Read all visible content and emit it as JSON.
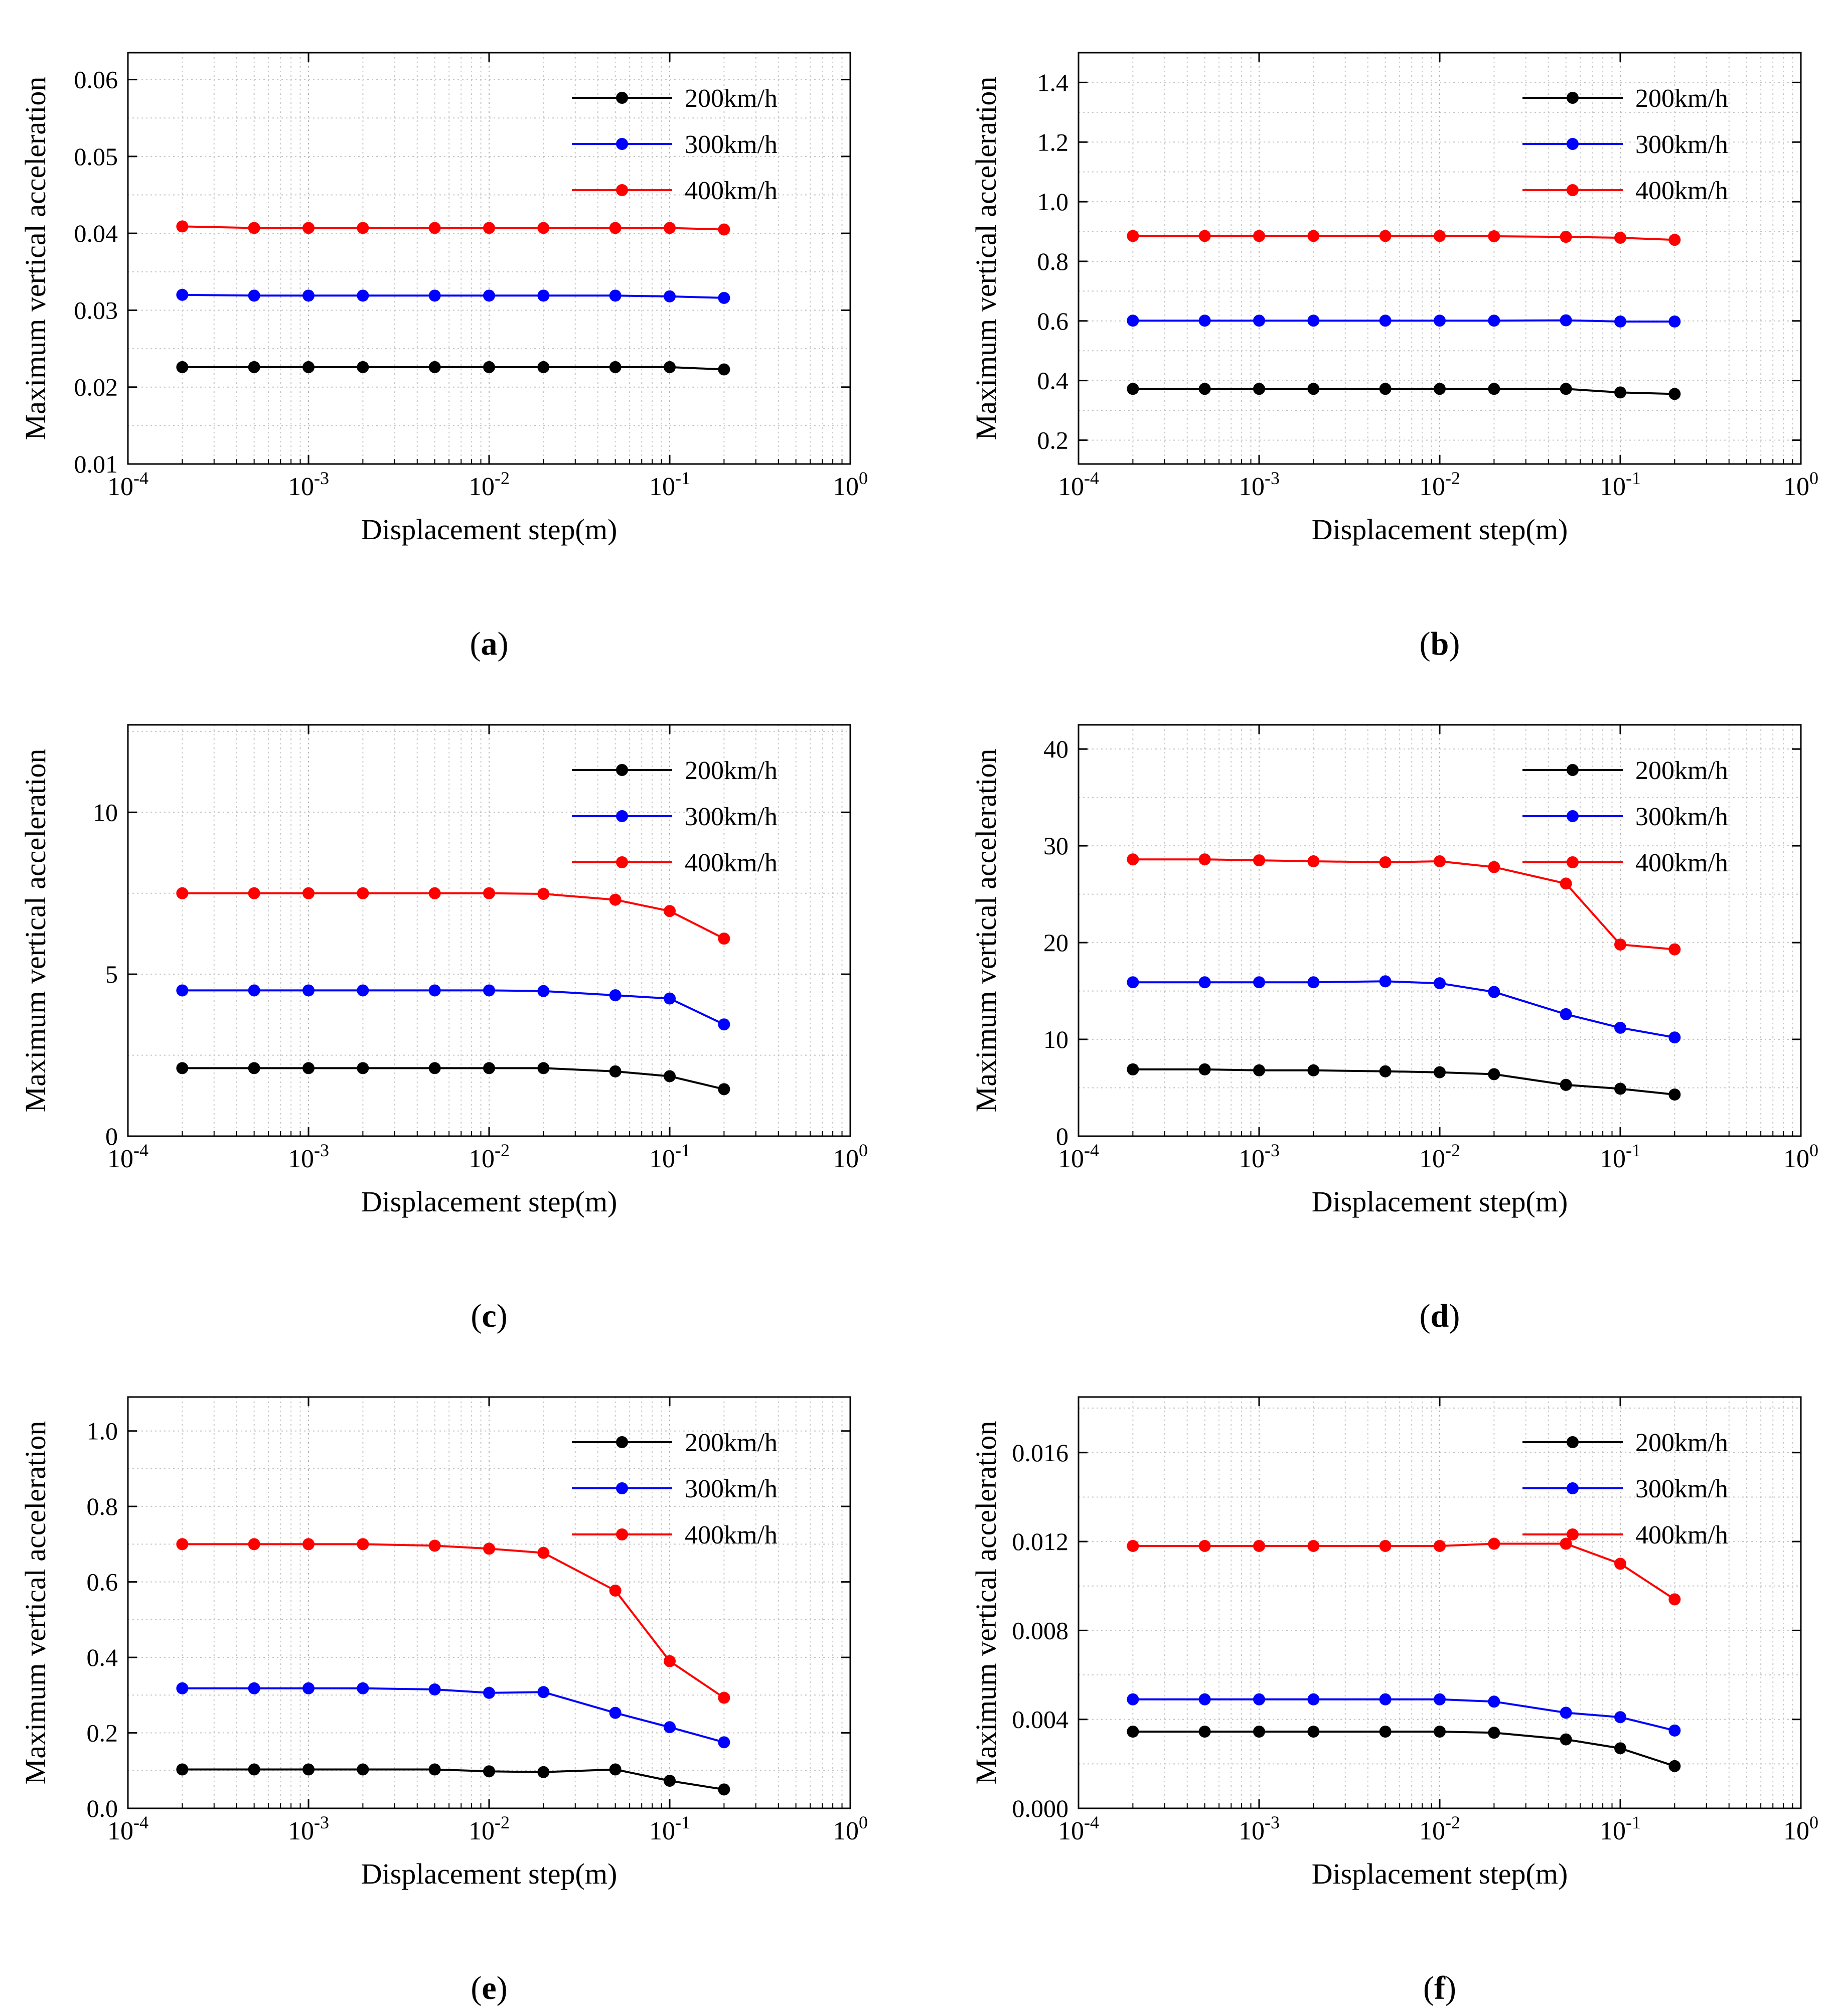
{
  "figure": {
    "x_values": [
      0.0002,
      0.0005,
      0.001,
      0.002,
      0.005,
      0.01,
      0.02,
      0.05,
      0.1,
      0.2
    ],
    "series_colors": [
      "#000000",
      "#0000ff",
      "#ff0000"
    ]
  },
  "chart_data": [
    {
      "type": "line",
      "panel_label": "a",
      "xlabel": "Displacement step(m)",
      "ylabel": "Maximum vertical acceleration",
      "xscale": "log",
      "xlim": [
        0.0001,
        1
      ],
      "x_ticks": [
        0.0001,
        0.001,
        0.01,
        0.1,
        1
      ],
      "x_tick_labels": [
        {
          "base": "10",
          "exp": "-4"
        },
        {
          "base": "10",
          "exp": "-3"
        },
        {
          "base": "10",
          "exp": "-2"
        },
        {
          "base": "10",
          "exp": "-1"
        },
        {
          "base": "10",
          "exp": "0"
        }
      ],
      "ylim": [
        0.01,
        0.0635
      ],
      "y_ticks": [
        0.01,
        0.02,
        0.03,
        0.04,
        0.05,
        0.06
      ],
      "y_tick_labels": [
        "0.01",
        "0.02",
        "0.03",
        "0.04",
        "0.05",
        "0.06"
      ],
      "grid": true,
      "legend": "top-right",
      "x": [
        0.0002,
        0.0005,
        0.001,
        0.002,
        0.005,
        0.01,
        0.02,
        0.05,
        0.1,
        0.2
      ],
      "series": [
        {
          "name": "200km/h",
          "color": "#000000",
          "values": [
            0.0226,
            0.0226,
            0.0226,
            0.0226,
            0.0226,
            0.0226,
            0.0226,
            0.0226,
            0.0226,
            0.0223
          ]
        },
        {
          "name": "300km/h",
          "color": "#0000ff",
          "values": [
            0.032,
            0.0319,
            0.0319,
            0.0319,
            0.0319,
            0.0319,
            0.0319,
            0.0319,
            0.0318,
            0.0316
          ]
        },
        {
          "name": "400km/h",
          "color": "#ff0000",
          "values": [
            0.0409,
            0.0407,
            0.0407,
            0.0407,
            0.0407,
            0.0407,
            0.0407,
            0.0407,
            0.0407,
            0.0405
          ]
        }
      ]
    },
    {
      "type": "line",
      "panel_label": "b",
      "xlabel": "Displacement step(m)",
      "ylabel": "Maximum vertical acceleration",
      "xscale": "log",
      "xlim": [
        0.0001,
        1
      ],
      "x_ticks": [
        0.0001,
        0.001,
        0.01,
        0.1,
        1
      ],
      "x_tick_labels": [
        {
          "base": "10",
          "exp": "-4"
        },
        {
          "base": "10",
          "exp": "-3"
        },
        {
          "base": "10",
          "exp": "-2"
        },
        {
          "base": "10",
          "exp": "-1"
        },
        {
          "base": "10",
          "exp": "0"
        }
      ],
      "ylim": [
        0.12,
        1.5
      ],
      "y_ticks": [
        0.2,
        0.4,
        0.6,
        0.8,
        1.0,
        1.2,
        1.4
      ],
      "y_tick_labels": [
        "0.2",
        "0.4",
        "0.6",
        "0.8",
        "1.0",
        "1.2",
        "1.4"
      ],
      "grid": true,
      "legend": "top-right",
      "x": [
        0.0002,
        0.0005,
        0.001,
        0.002,
        0.005,
        0.01,
        0.02,
        0.05,
        0.1,
        0.2
      ],
      "series": [
        {
          "name": "200km/h",
          "color": "#000000",
          "values": [
            0.372,
            0.372,
            0.372,
            0.372,
            0.372,
            0.372,
            0.372,
            0.372,
            0.36,
            0.355
          ]
        },
        {
          "name": "300km/h",
          "color": "#0000ff",
          "values": [
            0.601,
            0.601,
            0.601,
            0.601,
            0.601,
            0.601,
            0.601,
            0.602,
            0.598,
            0.598
          ]
        },
        {
          "name": "400km/h",
          "color": "#ff0000",
          "values": [
            0.885,
            0.885,
            0.885,
            0.885,
            0.885,
            0.885,
            0.884,
            0.882,
            0.879,
            0.872
          ]
        }
      ]
    },
    {
      "type": "line",
      "panel_label": "c",
      "xlabel": "Displacement step(m)",
      "ylabel": "Maximum vertical acceleration",
      "xscale": "log",
      "xlim": [
        0.0001,
        1
      ],
      "x_ticks": [
        0.0001,
        0.001,
        0.01,
        0.1,
        1
      ],
      "x_tick_labels": [
        {
          "base": "10",
          "exp": "-4"
        },
        {
          "base": "10",
          "exp": "-3"
        },
        {
          "base": "10",
          "exp": "-2"
        },
        {
          "base": "10",
          "exp": "-1"
        },
        {
          "base": "10",
          "exp": "0"
        }
      ],
      "ylim": [
        0,
        12.7
      ],
      "y_ticks": [
        0,
        5,
        10
      ],
      "y_tick_labels": [
        "0",
        "5",
        "10"
      ],
      "grid": true,
      "legend": "top-right",
      "x": [
        0.0002,
        0.0005,
        0.001,
        0.002,
        0.005,
        0.01,
        0.02,
        0.05,
        0.1,
        0.2
      ],
      "series": [
        {
          "name": "200km/h",
          "color": "#000000",
          "values": [
            2.1,
            2.1,
            2.1,
            2.1,
            2.1,
            2.1,
            2.1,
            2.0,
            1.85,
            1.45
          ]
        },
        {
          "name": "300km/h",
          "color": "#0000ff",
          "values": [
            4.5,
            4.5,
            4.5,
            4.5,
            4.5,
            4.5,
            4.48,
            4.35,
            4.25,
            3.45
          ]
        },
        {
          "name": "400km/h",
          "color": "#ff0000",
          "values": [
            7.5,
            7.5,
            7.5,
            7.5,
            7.5,
            7.5,
            7.48,
            7.3,
            6.95,
            6.1
          ]
        }
      ]
    },
    {
      "type": "line",
      "panel_label": "d",
      "xlabel": "Displacement step(m)",
      "ylabel": "Maximum vertical acceleration",
      "xscale": "log",
      "xlim": [
        0.0001,
        1
      ],
      "x_ticks": [
        0.0001,
        0.001,
        0.01,
        0.1,
        1
      ],
      "x_tick_labels": [
        {
          "base": "10",
          "exp": "-4"
        },
        {
          "base": "10",
          "exp": "-3"
        },
        {
          "base": "10",
          "exp": "-2"
        },
        {
          "base": "10",
          "exp": "-1"
        },
        {
          "base": "10",
          "exp": "0"
        }
      ],
      "ylim": [
        0,
        42.5
      ],
      "y_ticks": [
        0,
        10,
        20,
        30,
        40
      ],
      "y_tick_labels": [
        "0",
        "10",
        "20",
        "30",
        "40"
      ],
      "grid": true,
      "legend": "top-right",
      "x": [
        0.0002,
        0.0005,
        0.001,
        0.002,
        0.005,
        0.01,
        0.02,
        0.05,
        0.1,
        0.2
      ],
      "series": [
        {
          "name": "200km/h",
          "color": "#000000",
          "values": [
            6.9,
            6.9,
            6.8,
            6.8,
            6.7,
            6.6,
            6.4,
            5.3,
            4.9,
            4.3
          ]
        },
        {
          "name": "300km/h",
          "color": "#0000ff",
          "values": [
            15.9,
            15.9,
            15.9,
            15.9,
            16.0,
            15.8,
            14.9,
            12.6,
            11.2,
            10.2
          ]
        },
        {
          "name": "400km/h",
          "color": "#ff0000",
          "values": [
            28.6,
            28.6,
            28.5,
            28.4,
            28.3,
            28.4,
            27.8,
            26.1,
            19.8,
            19.3
          ]
        }
      ]
    },
    {
      "type": "line",
      "panel_label": "e",
      "xlabel": "Displacement step(m)",
      "ylabel": "Maximum vertical acceleration",
      "xscale": "log",
      "xlim": [
        0.0001,
        1
      ],
      "x_ticks": [
        0.0001,
        0.001,
        0.01,
        0.1,
        1
      ],
      "x_tick_labels": [
        {
          "base": "10",
          "exp": "-4"
        },
        {
          "base": "10",
          "exp": "-3"
        },
        {
          "base": "10",
          "exp": "-2"
        },
        {
          "base": "10",
          "exp": "-1"
        },
        {
          "base": "10",
          "exp": "0"
        }
      ],
      "ylim": [
        0,
        1.09
      ],
      "y_ticks": [
        0.0,
        0.2,
        0.4,
        0.6,
        0.8,
        1.0
      ],
      "y_tick_labels": [
        "0.0",
        "0.2",
        "0.4",
        "0.6",
        "0.8",
        "1.0"
      ],
      "grid": true,
      "legend": "top-right",
      "x": [
        0.0002,
        0.0005,
        0.001,
        0.002,
        0.005,
        0.01,
        0.02,
        0.05,
        0.1,
        0.2
      ],
      "series": [
        {
          "name": "200km/h",
          "color": "#000000",
          "values": [
            0.103,
            0.103,
            0.103,
            0.103,
            0.103,
            0.098,
            0.096,
            0.103,
            0.073,
            0.05
          ]
        },
        {
          "name": "300km/h",
          "color": "#0000ff",
          "values": [
            0.318,
            0.318,
            0.318,
            0.318,
            0.315,
            0.306,
            0.308,
            0.253,
            0.215,
            0.175
          ]
        },
        {
          "name": "400km/h",
          "color": "#ff0000",
          "values": [
            0.7,
            0.7,
            0.7,
            0.7,
            0.696,
            0.688,
            0.677,
            0.577,
            0.39,
            0.293
          ]
        }
      ]
    },
    {
      "type": "line",
      "panel_label": "f",
      "xlabel": "Displacement step(m)",
      "ylabel": "Maximum vertical acceleration",
      "xscale": "log",
      "xlim": [
        0.0001,
        1
      ],
      "x_ticks": [
        0.0001,
        0.001,
        0.01,
        0.1,
        1
      ],
      "x_tick_labels": [
        {
          "base": "10",
          "exp": "-4"
        },
        {
          "base": "10",
          "exp": "-3"
        },
        {
          "base": "10",
          "exp": "-2"
        },
        {
          "base": "10",
          "exp": "-1"
        },
        {
          "base": "10",
          "exp": "0"
        }
      ],
      "ylim": [
        0,
        0.0185
      ],
      "y_ticks": [
        0.0,
        0.004,
        0.008,
        0.012,
        0.016
      ],
      "y_tick_labels": [
        "0.000",
        "0.004",
        "0.008",
        "0.012",
        "0.016"
      ],
      "grid": true,
      "legend": "top-right",
      "x": [
        0.0002,
        0.0005,
        0.001,
        0.002,
        0.005,
        0.01,
        0.02,
        0.05,
        0.1,
        0.2
      ],
      "series": [
        {
          "name": "200km/h",
          "color": "#000000",
          "values": [
            0.00345,
            0.00345,
            0.00345,
            0.00345,
            0.00345,
            0.00345,
            0.0034,
            0.0031,
            0.0027,
            0.0019
          ]
        },
        {
          "name": "300km/h",
          "color": "#0000ff",
          "values": [
            0.0049,
            0.0049,
            0.0049,
            0.0049,
            0.0049,
            0.0049,
            0.0048,
            0.0043,
            0.0041,
            0.0035
          ]
        },
        {
          "name": "400km/h",
          "color": "#ff0000",
          "values": [
            0.0118,
            0.0118,
            0.0118,
            0.0118,
            0.0118,
            0.0118,
            0.0119,
            0.0119,
            0.011,
            0.0094
          ]
        }
      ]
    }
  ]
}
